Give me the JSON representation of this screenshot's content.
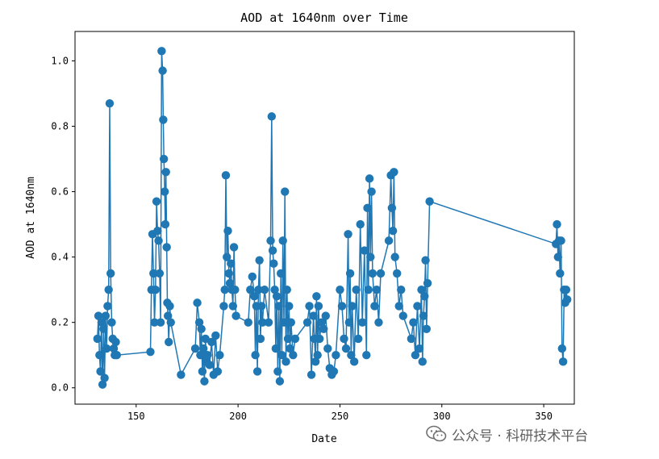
{
  "chart_data": {
    "type": "line",
    "title": "AOD at 1640nm over Time",
    "xlabel": "Date",
    "ylabel": "AOD at 1640nm",
    "xlim": [
      120,
      365
    ],
    "ylim": [
      -0.05,
      1.09
    ],
    "xticks": [
      150,
      200,
      250,
      300,
      350
    ],
    "yticks": [
      0.0,
      0.2,
      0.4,
      0.6,
      0.8,
      1.0
    ],
    "grid": false,
    "marker": "circle",
    "color": "#1f77b4",
    "series": [
      {
        "x": [
          131,
          131.5,
          132,
          132.5,
          133,
          133.5,
          134,
          134.5,
          135,
          135.5,
          136,
          136.5,
          137,
          137.5,
          138,
          138.5,
          139,
          139.5,
          140,
          140.5,
          157,
          157.5,
          158,
          158.5,
          159,
          159.5,
          160,
          160.5,
          161,
          161.5,
          162,
          162.5,
          163,
          163.3,
          163.6,
          164,
          164.3,
          164.6,
          165,
          165.3,
          165.6,
          166,
          166.5,
          167,
          172,
          179,
          180,
          181,
          181.5,
          182,
          182.5,
          183,
          183.5,
          184,
          184.5,
          185,
          186,
          187,
          188,
          189,
          190,
          191,
          193,
          193.5,
          194,
          194.5,
          195,
          195.5,
          196,
          196.5,
          197,
          197.5,
          198,
          198.5,
          199,
          205,
          206,
          207,
          208,
          208.5,
          209,
          209.5,
          210,
          210.5,
          211,
          211.5,
          212,
          213,
          215,
          216,
          216.5,
          217,
          217.5,
          218,
          218.5,
          219,
          219.5,
          220,
          220.5,
          221,
          221.5,
          222,
          222.5,
          223,
          223.5,
          224,
          224.5,
          225,
          225.5,
          226,
          227,
          228,
          234,
          235,
          236,
          237,
          237.5,
          238,
          238.5,
          239,
          239.5,
          240,
          241,
          242,
          243,
          244,
          245,
          246,
          247,
          248,
          250,
          251,
          252,
          253,
          254,
          254.5,
          255,
          255.5,
          256,
          257,
          258,
          259,
          260,
          261,
          262,
          263,
          263.5,
          264,
          264.5,
          265,
          265.5,
          266,
          267,
          268,
          269,
          270,
          274,
          275,
          275.5,
          276,
          276.5,
          277,
          278,
          279,
          280,
          281,
          285,
          286,
          287,
          288,
          289,
          290,
          290.5,
          291,
          291.5,
          292,
          292.5,
          293,
          294,
          356,
          356.5,
          357,
          357.5,
          358,
          358.5,
          359,
          359.5,
          360,
          360.5,
          361,
          361.5
        ],
        "y": [
          0.15,
          0.22,
          0.1,
          0.05,
          0.2,
          0.01,
          0.18,
          0.03,
          0.22,
          0.12,
          0.25,
          0.3,
          0.87,
          0.35,
          0.2,
          0.15,
          0.12,
          0.1,
          0.14,
          0.1,
          0.11,
          0.3,
          0.47,
          0.35,
          0.2,
          0.3,
          0.57,
          0.48,
          0.45,
          0.35,
          0.2,
          1.03,
          0.97,
          0.82,
          0.7,
          0.6,
          0.5,
          0.66,
          0.43,
          0.26,
          0.22,
          0.14,
          0.25,
          0.2,
          0.04,
          0.12,
          0.26,
          0.2,
          0.1,
          0.18,
          0.05,
          0.12,
          0.02,
          0.15,
          0.08,
          0.1,
          0.07,
          0.14,
          0.04,
          0.16,
          0.05,
          0.1,
          0.25,
          0.3,
          0.65,
          0.4,
          0.48,
          0.35,
          0.32,
          0.38,
          0.3,
          0.25,
          0.43,
          0.3,
          0.22,
          0.2,
          0.3,
          0.34,
          0.28,
          0.1,
          0.25,
          0.05,
          0.3,
          0.39,
          0.15,
          0.25,
          0.2,
          0.3,
          0.2,
          0.45,
          0.83,
          0.42,
          0.38,
          0.3,
          0.12,
          0.28,
          0.05,
          0.25,
          0.02,
          0.35,
          0.1,
          0.45,
          0.2,
          0.6,
          0.08,
          0.3,
          0.15,
          0.25,
          0.12,
          0.2,
          0.1,
          0.15,
          0.2,
          0.25,
          0.04,
          0.22,
          0.15,
          0.08,
          0.28,
          0.1,
          0.25,
          0.15,
          0.2,
          0.18,
          0.22,
          0.12,
          0.06,
          0.04,
          0.05,
          0.1,
          0.3,
          0.25,
          0.15,
          0.12,
          0.47,
          0.2,
          0.35,
          0.1,
          0.25,
          0.08,
          0.3,
          0.15,
          0.5,
          0.2,
          0.42,
          0.1,
          0.55,
          0.3,
          0.64,
          0.4,
          0.6,
          0.35,
          0.25,
          0.3,
          0.2,
          0.35,
          0.45,
          0.65,
          0.55,
          0.48,
          0.66,
          0.4,
          0.35,
          0.25,
          0.3,
          0.22,
          0.15,
          0.2,
          0.1,
          0.25,
          0.12,
          0.3,
          0.08,
          0.22,
          0.28,
          0.39,
          0.18,
          0.32,
          0.57,
          0.44,
          0.5,
          0.4,
          0.45,
          0.35,
          0.45,
          0.12,
          0.08,
          0.3,
          0.26,
          0.3,
          0.27
        ]
      }
    ]
  },
  "watermark": {
    "text": "公众号 · 科研技术平台"
  }
}
